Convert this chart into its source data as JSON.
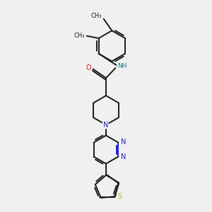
{
  "background_color": "#f0f0f0",
  "bond_color": "#1a1a1a",
  "nitrogen_color": "#2020cc",
  "oxygen_color": "#cc2020",
  "sulfur_color": "#b8b800",
  "nh_color": "#008080",
  "line_width": 1.4,
  "fig_width": 3.0,
  "fig_height": 3.0,
  "dpi": 100,
  "xlim": [
    -2.5,
    2.5
  ],
  "ylim": [
    -4.5,
    4.5
  ]
}
